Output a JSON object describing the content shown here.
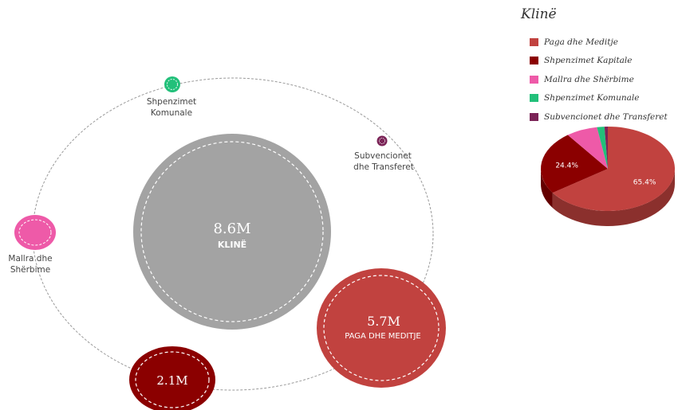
{
  "bubble_chart": {
    "center": {
      "value": "8.6M",
      "label": "KLINË"
    },
    "bubbles": [
      {
        "key": "paga",
        "value": "5.7M",
        "label": "PAGA DHE MEDITJE",
        "color": "#c1423f",
        "amount": 5.7
      },
      {
        "key": "kapitale",
        "value": "2.1M",
        "label": "",
        "color": "#8b0000",
        "amount": 2.1
      },
      {
        "key": "mallra",
        "value": "",
        "label": "",
        "outer_label_lines": [
          "Mallra dhe",
          "Shërbime"
        ],
        "color": "#ee5aa8"
      },
      {
        "key": "komunale",
        "value": "",
        "label": "",
        "outer_label_lines": [
          "Shpenzimet",
          "Komunale"
        ],
        "color": "#22c07a"
      },
      {
        "key": "subvencionet",
        "value": "",
        "label": "",
        "outer_label_lines": [
          "Subvencionet",
          "dhe Transferet"
        ],
        "color": "#7b2457"
      }
    ]
  },
  "legend": {
    "title": "Klinë",
    "items": [
      {
        "label": "Paga dhe Meditje",
        "color": "#c1423f"
      },
      {
        "label": "Shpenzimet Kapitale",
        "color": "#8b0000"
      },
      {
        "label": "Mallra dhe Shërbime",
        "color": "#ee5aa8"
      },
      {
        "label": "Shpenzimet Komunale",
        "color": "#22c07a"
      },
      {
        "label": "Subvencionet dhe Transferet",
        "color": "#7b2457"
      }
    ]
  },
  "chart_data": {
    "type": "pie",
    "title": "Klinë",
    "categories": [
      "Paga dhe Meditje",
      "Shpenzimet Kapitale",
      "Mallra dhe Shërbime",
      "Shpenzimet Komunale",
      "Subvencionet dhe Transferet"
    ],
    "values": [
      65.4,
      24.4,
      7.6,
      1.8,
      0.8
    ],
    "colors": [
      "#c1423f",
      "#8b0000",
      "#ee5aa8",
      "#22c07a",
      "#7b2457"
    ],
    "data_labels": [
      "65.4%",
      "24.4%",
      "",
      "",
      ""
    ],
    "legend_position": "top-right"
  }
}
